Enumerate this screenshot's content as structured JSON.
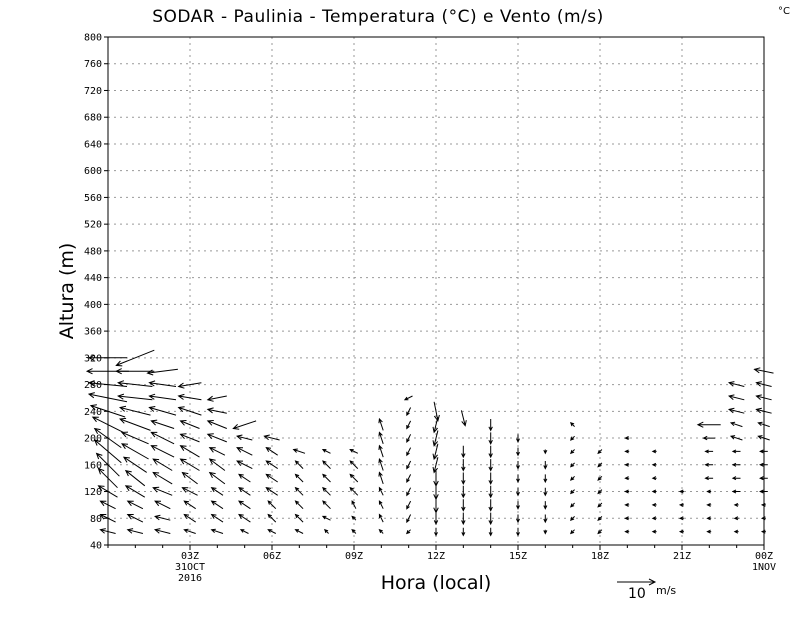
{
  "chart_data": {
    "type": "vector-field",
    "title": "SODAR - Paulinia - Temperatura (°C) e Vento (m/s)",
    "corner_label": "°C",
    "xlabel": "Hora (local)",
    "ylabel": "Altura (m)",
    "ylim": [
      40,
      800
    ],
    "y_ticks": [
      40,
      80,
      120,
      160,
      200,
      240,
      280,
      320,
      360,
      400,
      440,
      480,
      520,
      560,
      600,
      640,
      680,
      720,
      760,
      800
    ],
    "xlim": [
      0,
      24
    ],
    "x_ticks": [
      {
        "hour": 3,
        "label": "03Z",
        "sub": [
          "31OCT",
          "2016"
        ]
      },
      {
        "hour": 6,
        "label": "06Z",
        "sub": []
      },
      {
        "hour": 9,
        "label": "09Z",
        "sub": []
      },
      {
        "hour": 12,
        "label": "12Z",
        "sub": []
      },
      {
        "hour": 15,
        "label": "15Z",
        "sub": []
      },
      {
        "hour": 18,
        "label": "18Z",
        "sub": []
      },
      {
        "hour": 21,
        "label": "21Z",
        "sub": []
      },
      {
        "hour": 24,
        "label": "00Z",
        "sub": [
          "1NOV"
        ]
      }
    ],
    "grid": true,
    "reference_vector": {
      "value": 10,
      "label": "10",
      "unit": "m/s"
    },
    "vector_units": "m/s",
    "profiles": [
      {
        "hour": 0,
        "vectors": [
          [
            60,
            -4,
            1
          ],
          [
            80,
            -4,
            2
          ],
          [
            100,
            -4,
            2
          ],
          [
            120,
            -5,
            3
          ],
          [
            140,
            -5,
            5
          ],
          [
            160,
            -6,
            6
          ],
          [
            180,
            -7,
            6
          ],
          [
            200,
            -7,
            5
          ],
          [
            220,
            -8,
            4
          ],
          [
            240,
            -9,
            3
          ],
          [
            260,
            -10,
            2
          ],
          [
            280,
            -10,
            1
          ],
          [
            300,
            -11,
            0
          ],
          [
            320,
            -10,
            0
          ]
        ]
      },
      {
        "hour": 1,
        "vectors": [
          [
            60,
            -4,
            1
          ],
          [
            80,
            -4,
            2
          ],
          [
            100,
            -4,
            2
          ],
          [
            120,
            -5,
            3
          ],
          [
            140,
            -5,
            4
          ],
          [
            160,
            -6,
            4
          ],
          [
            180,
            -7,
            4
          ],
          [
            200,
            -7,
            3
          ],
          [
            220,
            -8,
            3
          ],
          [
            240,
            -8,
            2
          ],
          [
            260,
            -9,
            1
          ],
          [
            280,
            -9,
            1
          ],
          [
            300,
            -10,
            0
          ],
          [
            320,
            -10,
            -4
          ]
        ]
      },
      {
        "hour": 2,
        "vectors": [
          [
            60,
            -4,
            1
          ],
          [
            80,
            -4,
            1
          ],
          [
            100,
            -4,
            2
          ],
          [
            120,
            -5,
            2
          ],
          [
            140,
            -5,
            3
          ],
          [
            160,
            -5,
            3
          ],
          [
            180,
            -6,
            3
          ],
          [
            200,
            -6,
            3
          ],
          [
            220,
            -6,
            2
          ],
          [
            240,
            -7,
            2
          ],
          [
            260,
            -7,
            1
          ],
          [
            280,
            -7,
            1
          ],
          [
            300,
            -8,
            -1
          ]
        ]
      },
      {
        "hour": 3,
        "vectors": [
          [
            60,
            -3,
            1
          ],
          [
            80,
            -3,
            2
          ],
          [
            100,
            -3,
            2
          ],
          [
            120,
            -4,
            2
          ],
          [
            140,
            -4,
            3
          ],
          [
            160,
            -5,
            3
          ],
          [
            180,
            -5,
            3
          ],
          [
            200,
            -5,
            2
          ],
          [
            220,
            -5,
            2
          ],
          [
            240,
            -6,
            2
          ],
          [
            260,
            -6,
            1
          ],
          [
            280,
            -6,
            -1
          ]
        ]
      },
      {
        "hour": 4,
        "vectors": [
          [
            60,
            -3,
            1
          ],
          [
            80,
            -3,
            2
          ],
          [
            100,
            -3,
            2
          ],
          [
            120,
            -3,
            2
          ],
          [
            140,
            -4,
            3
          ],
          [
            160,
            -4,
            3
          ],
          [
            180,
            -4,
            2
          ],
          [
            200,
            -5,
            2
          ],
          [
            220,
            -5,
            2
          ],
          [
            240,
            -5,
            1
          ],
          [
            260,
            -5,
            -1
          ]
        ]
      },
      {
        "hour": 5,
        "vectors": [
          [
            60,
            -2,
            1
          ],
          [
            80,
            -3,
            2
          ],
          [
            100,
            -3,
            2
          ],
          [
            120,
            -3,
            2
          ],
          [
            140,
            -3,
            2
          ],
          [
            160,
            -4,
            2
          ],
          [
            180,
            -4,
            2
          ],
          [
            200,
            -4,
            1
          ],
          [
            220,
            -6,
            -2
          ]
        ]
      },
      {
        "hour": 6,
        "vectors": [
          [
            60,
            -2,
            1
          ],
          [
            80,
            -2,
            2
          ],
          [
            100,
            -2,
            2
          ],
          [
            120,
            -3,
            2
          ],
          [
            140,
            -3,
            2
          ],
          [
            160,
            -3,
            2
          ],
          [
            180,
            -3,
            2
          ],
          [
            200,
            -4,
            1
          ]
        ]
      },
      {
        "hour": 7,
        "vectors": [
          [
            60,
            -2,
            1
          ],
          [
            80,
            -2,
            2
          ],
          [
            100,
            -2,
            2
          ],
          [
            120,
            -2,
            2
          ],
          [
            140,
            -2,
            2
          ],
          [
            160,
            -2,
            2
          ],
          [
            180,
            -3,
            1
          ]
        ]
      },
      {
        "hour": 8,
        "vectors": [
          [
            60,
            -1,
            1
          ],
          [
            80,
            -2,
            1
          ],
          [
            100,
            -2,
            2
          ],
          [
            120,
            -2,
            2
          ],
          [
            140,
            -2,
            2
          ],
          [
            160,
            -2,
            2
          ],
          [
            180,
            -2,
            1
          ]
        ]
      },
      {
        "hour": 9,
        "vectors": [
          [
            60,
            -1,
            1
          ],
          [
            80,
            -1,
            1
          ],
          [
            100,
            -1,
            2
          ],
          [
            120,
            -2,
            2
          ],
          [
            140,
            -2,
            2
          ],
          [
            160,
            -2,
            2
          ],
          [
            180,
            -2,
            1
          ]
        ]
      },
      {
        "hour": 10,
        "vectors": [
          [
            60,
            -1,
            1
          ],
          [
            80,
            -1,
            2
          ],
          [
            100,
            -1,
            2
          ],
          [
            120,
            -1,
            2
          ],
          [
            140,
            -1,
            3
          ],
          [
            160,
            -1,
            3
          ],
          [
            180,
            -1,
            3
          ],
          [
            200,
            -1,
            3
          ],
          [
            220,
            -1,
            3
          ]
        ]
      },
      {
        "hour": 11,
        "vectors": [
          [
            60,
            -1,
            -1
          ],
          [
            80,
            -1,
            -2
          ],
          [
            100,
            -1,
            -2
          ],
          [
            120,
            -1,
            -2
          ],
          [
            140,
            -1,
            -2
          ],
          [
            160,
            -1,
            -2
          ],
          [
            180,
            -1,
            -2
          ],
          [
            200,
            -1,
            -2
          ],
          [
            220,
            -1,
            -2
          ],
          [
            240,
            -1,
            -2
          ],
          [
            260,
            -2,
            -1
          ]
        ]
      },
      {
        "hour": 12,
        "vectors": [
          [
            60,
            0,
            -2
          ],
          [
            80,
            0,
            -3
          ],
          [
            100,
            0,
            -4
          ],
          [
            120,
            0,
            -4
          ],
          [
            140,
            0,
            -4
          ],
          [
            160,
            -1,
            -4
          ],
          [
            180,
            -1,
            -4
          ],
          [
            200,
            -1,
            -4
          ],
          [
            220,
            -1,
            -4
          ],
          [
            240,
            1,
            -5
          ]
        ]
      },
      {
        "hour": 13,
        "vectors": [
          [
            60,
            0,
            -2
          ],
          [
            80,
            0,
            -3
          ],
          [
            100,
            0,
            -3
          ],
          [
            120,
            0,
            -3
          ],
          [
            140,
            0,
            -3
          ],
          [
            160,
            0,
            -3
          ],
          [
            180,
            0,
            -3
          ],
          [
            230,
            1,
            -4
          ]
        ]
      },
      {
        "hour": 14,
        "vectors": [
          [
            60,
            0,
            -2
          ],
          [
            80,
            0,
            -3
          ],
          [
            100,
            0,
            -3
          ],
          [
            120,
            0,
            -3
          ],
          [
            140,
            0,
            -3
          ],
          [
            160,
            0,
            -3
          ],
          [
            180,
            0,
            -3
          ],
          [
            200,
            0,
            -3
          ],
          [
            220,
            0,
            -3
          ]
        ]
      },
      {
        "hour": 15,
        "vectors": [
          [
            60,
            0,
            -2
          ],
          [
            80,
            0,
            -2
          ],
          [
            100,
            0,
            -2
          ],
          [
            120,
            0,
            -2
          ],
          [
            140,
            0,
            -2
          ],
          [
            160,
            0,
            -2
          ],
          [
            180,
            0,
            -2
          ],
          [
            200,
            0,
            -2
          ]
        ]
      },
      {
        "hour": 16,
        "vectors": [
          [
            60,
            0,
            -1
          ],
          [
            80,
            0,
            -2
          ],
          [
            100,
            0,
            -2
          ],
          [
            120,
            0,
            -2
          ],
          [
            140,
            0,
            -2
          ],
          [
            160,
            0,
            -2
          ],
          [
            180,
            0,
            -1
          ]
        ]
      },
      {
        "hour": 17,
        "vectors": [
          [
            60,
            -1,
            -1
          ],
          [
            80,
            -1,
            -1
          ],
          [
            100,
            -1,
            -1
          ],
          [
            120,
            -1,
            -1
          ],
          [
            140,
            -1,
            -1
          ],
          [
            160,
            -1,
            -1
          ],
          [
            180,
            -1,
            -1
          ],
          [
            200,
            -1,
            -1
          ],
          [
            220,
            -1,
            1
          ]
        ]
      },
      {
        "hour": 18,
        "vectors": [
          [
            60,
            -1,
            -1
          ],
          [
            80,
            -1,
            -1
          ],
          [
            100,
            -1,
            -1
          ],
          [
            120,
            -1,
            -1
          ],
          [
            140,
            -1,
            -1
          ],
          [
            160,
            -1,
            -1
          ],
          [
            180,
            -1,
            -1
          ]
        ]
      },
      {
        "hour": 19,
        "vectors": [
          [
            60,
            -1,
            0
          ],
          [
            80,
            -1,
            0
          ],
          [
            100,
            -1,
            0
          ],
          [
            120,
            -1,
            0
          ],
          [
            140,
            -1,
            0
          ],
          [
            160,
            -1,
            0
          ],
          [
            180,
            -1,
            0
          ],
          [
            200,
            -1,
            0
          ]
        ]
      },
      {
        "hour": 20,
        "vectors": [
          [
            60,
            -1,
            0
          ],
          [
            80,
            -1,
            0
          ],
          [
            100,
            -1,
            0
          ],
          [
            120,
            -1,
            0
          ],
          [
            140,
            -1,
            0
          ],
          [
            160,
            -1,
            0
          ],
          [
            180,
            -1,
            0
          ]
        ]
      },
      {
        "hour": 21,
        "vectors": [
          [
            60,
            -1,
            0
          ],
          [
            80,
            -1,
            0
          ],
          [
            100,
            -1,
            0
          ],
          [
            120,
            -1,
            0
          ]
        ]
      },
      {
        "hour": 22,
        "vectors": [
          [
            60,
            -1,
            0
          ],
          [
            80,
            -1,
            0
          ],
          [
            100,
            -1,
            0
          ],
          [
            120,
            -1,
            0
          ],
          [
            140,
            -2,
            0
          ],
          [
            160,
            -2,
            0
          ],
          [
            180,
            -2,
            0
          ],
          [
            200,
            -3,
            0
          ],
          [
            220,
            -6,
            0
          ]
        ]
      },
      {
        "hour": 23,
        "vectors": [
          [
            60,
            -1,
            0
          ],
          [
            80,
            -1,
            0
          ],
          [
            100,
            -1,
            0
          ],
          [
            120,
            -2,
            0
          ],
          [
            140,
            -2,
            0
          ],
          [
            160,
            -2,
            0
          ],
          [
            180,
            -2,
            0
          ],
          [
            200,
            -3,
            1
          ],
          [
            220,
            -3,
            1
          ],
          [
            240,
            -4,
            1
          ],
          [
            260,
            -4,
            1
          ],
          [
            280,
            -4,
            1
          ]
        ]
      },
      {
        "hour": 24,
        "vectors": [
          [
            60,
            -1,
            0
          ],
          [
            80,
            -1,
            0
          ],
          [
            100,
            -1,
            0
          ],
          [
            120,
            -2,
            0
          ],
          [
            140,
            -2,
            0
          ],
          [
            160,
            -2,
            0
          ],
          [
            180,
            -2,
            0
          ],
          [
            200,
            -3,
            1
          ],
          [
            220,
            -3,
            1
          ],
          [
            240,
            -4,
            1
          ],
          [
            260,
            -4,
            1
          ],
          [
            280,
            -4,
            1
          ],
          [
            300,
            -5,
            1
          ]
        ]
      }
    ]
  }
}
